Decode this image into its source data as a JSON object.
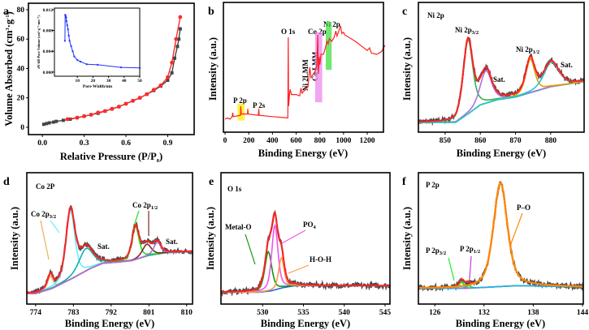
{
  "panels": {
    "a": {
      "label": "a",
      "xlabel": {
        "main": "Relative Pressure (P/P",
        "sub": "0",
        "end": ")"
      },
      "ylabel": {
        "p1": "Volume Absorbed (cm",
        "s1": "3",
        "p2": "·g",
        "s2": "-1",
        "p3": ")"
      },
      "inset": {
        "xlabel": "Pore Width/nm",
        "ylabel": "dV/dD Pore Volume (cm³·g⁻¹·nm⁻¹)",
        "xticks": [
          "10",
          "20",
          "30",
          "40",
          "50"
        ],
        "yticks": [
          "0.000",
          "0.004",
          "0.008",
          "0.012"
        ]
      },
      "xticks": [
        "0.0",
        "0.3",
        "0.6",
        "0.9"
      ],
      "yticks": [
        "0",
        "20",
        "40",
        "60",
        "80"
      ]
    },
    "b": {
      "label": "b",
      "xlabel": "Binding Energy (eV)",
      "ylabel": "Intensity (a.u.)",
      "xticks": [
        "0",
        "200",
        "400",
        "600",
        "800",
        "1000",
        "1200"
      ],
      "annotations": {
        "p2p": "P 2p",
        "p2s": "P 2s",
        "o1s": "O 1s",
        "ni_lmm": "Ni 2LMM",
        "co_lmm": "Co LMM",
        "co2p": "Co 2p",
        "ni2p": "Ni 2p"
      }
    },
    "c": {
      "label": "c",
      "title": "Ni 2p",
      "xlabel": "Binding Energy (eV)",
      "ylabel": "Intensity (a.u.)",
      "xticks": [
        "850",
        "860",
        "870",
        "880"
      ],
      "annotations": {
        "p32": {
          "main": "Ni 2p",
          "sub": "3/2"
        },
        "sat1": "Sat.",
        "p12": {
          "main": "Ni 2p",
          "sub": "1/2"
        },
        "sat2": "Sat."
      }
    },
    "d": {
      "label": "d",
      "title": "Co 2P",
      "xlabel": "Binding Energy (eV)",
      "ylabel": "Intensity (a.u.)",
      "xticks": [
        "774",
        "783",
        "792",
        "801",
        "810"
      ],
      "annotations": {
        "p32": {
          "main": "Co 2p",
          "sub": "3/2"
        },
        "sat1": "Sat.",
        "p12": {
          "main": "Co 2p",
          "sub": "1/2"
        },
        "sat2": "Sat."
      }
    },
    "e": {
      "label": "e",
      "title": "O 1s",
      "xlabel": "Binding Energy (eV)",
      "ylabel": "Intensity (a.u.)",
      "xticks": [
        "530",
        "535",
        "540",
        "545"
      ],
      "annotations": {
        "metal_o": "Metal-O",
        "po4": {
          "main": "PO",
          "sub": "4"
        },
        "hoh": "H-O-H"
      }
    },
    "f": {
      "label": "f",
      "title": "P 2p",
      "xlabel": "Binding Energy (eV)",
      "ylabel": "Intensity (a.u.)",
      "xticks": [
        "126",
        "132",
        "138",
        "144"
      ],
      "annotations": {
        "p32": {
          "main": "P 2p",
          "sub": "3/2"
        },
        "p12": {
          "main": "P 2p",
          "sub": "1/2"
        },
        "po": "P–O"
      }
    }
  },
  "chart_data": [
    {
      "panel": "a",
      "type": "scatter",
      "xlabel": "Relative Pressure (P/P0)",
      "ylabel": "Volume Absorbed (cm3·g-1)",
      "xlim": [
        -0.1,
        1.09
      ],
      "ylim": [
        -5,
        84.4
      ],
      "grid": false,
      "series": [
        {
          "color": "#444444",
          "marker": "square",
          "points": [
            [
              0.01,
              2
            ],
            [
              0.03,
              2.5
            ],
            [
              0.05,
              3
            ],
            [
              0.08,
              3.5
            ],
            [
              0.1,
              4
            ],
            [
              0.15,
              4.7
            ],
            [
              0.2,
              5.5
            ],
            [
              0.25,
              6.5
            ],
            [
              0.3,
              7.5
            ],
            [
              0.35,
              8.5
            ],
            [
              0.4,
              9.5
            ],
            [
              0.45,
              11
            ],
            [
              0.5,
              12.5
            ],
            [
              0.55,
              14
            ],
            [
              0.6,
              16
            ],
            [
              0.65,
              18
            ],
            [
              0.7,
              20
            ],
            [
              0.75,
              22.5
            ],
            [
              0.8,
              25
            ],
            [
              0.85,
              28
            ],
            [
              0.9,
              32
            ],
            [
              0.93,
              37
            ],
            [
              0.95,
              47
            ],
            [
              0.97,
              55
            ],
            [
              0.98,
              60
            ],
            [
              0.99,
              67
            ]
          ]
        },
        {
          "color": "#ff2a2a",
          "marker": "circle",
          "points": [
            [
              0.18,
              5.5
            ],
            [
              0.25,
              6.5
            ],
            [
              0.3,
              7.5
            ],
            [
              0.35,
              8.5
            ],
            [
              0.4,
              10
            ],
            [
              0.45,
              11
            ],
            [
              0.5,
              12.5
            ],
            [
              0.55,
              14
            ],
            [
              0.6,
              16
            ],
            [
              0.65,
              18
            ],
            [
              0.7,
              20
            ],
            [
              0.75,
              22.5
            ],
            [
              0.8,
              25.5
            ],
            [
              0.85,
              28.5
            ],
            [
              0.9,
              34
            ],
            [
              0.93,
              44
            ],
            [
              0.96,
              60
            ],
            [
              0.99,
              75
            ]
          ]
        }
      ],
      "inset": {
        "type": "line",
        "color": "#2233ff",
        "xlim": [
          -4.7,
          50
        ],
        "ylim": [
          -0.0008,
          0.0123
        ],
        "points": [
          [
            2,
            0.006
          ],
          [
            2.2,
            0.011
          ],
          [
            2.5,
            0.0108
          ],
          [
            2.8,
            0.0105
          ],
          [
            3,
            0.0098
          ],
          [
            3.5,
            0.009
          ],
          [
            4,
            0.0082
          ],
          [
            4.5,
            0.007
          ],
          [
            5,
            0.006
          ],
          [
            6,
            0.005
          ],
          [
            7,
            0.004
          ],
          [
            8,
            0.003
          ],
          [
            10,
            0.0023
          ],
          [
            12,
            0.002
          ],
          [
            16,
            0.0015
          ],
          [
            23,
            0.0014
          ],
          [
            38,
            0.0009
          ],
          [
            50,
            0.0008
          ]
        ]
      }
    },
    {
      "panel": "b",
      "type": "line",
      "xlim": [
        -14,
        1337
      ],
      "ylim": [
        0,
        100
      ],
      "color": "#ff2020",
      "points": [
        [
          0,
          10
        ],
        [
          20,
          11
        ],
        [
          40,
          10
        ],
        [
          60,
          12
        ],
        [
          65,
          15
        ],
        [
          70,
          12
        ],
        [
          130,
          13
        ],
        [
          133,
          20
        ],
        [
          136,
          14
        ],
        [
          190,
          14
        ],
        [
          192,
          18
        ],
        [
          195,
          14
        ],
        [
          280,
          13
        ],
        [
          285,
          18
        ],
        [
          288,
          13
        ],
        [
          400,
          12
        ],
        [
          520,
          11
        ],
        [
          530,
          11
        ],
        [
          533,
          73
        ],
        [
          536,
          20
        ],
        [
          545,
          30
        ],
        [
          550,
          33
        ],
        [
          560,
          29
        ],
        [
          600,
          29
        ],
        [
          630,
          28
        ],
        [
          640,
          34
        ],
        [
          650,
          30
        ],
        [
          700,
          35
        ],
        [
          715,
          50
        ],
        [
          725,
          42
        ],
        [
          760,
          47
        ],
        [
          775,
          52
        ],
        [
          782,
          75
        ],
        [
          788,
          45
        ],
        [
          795,
          58
        ],
        [
          800,
          52
        ],
        [
          810,
          60
        ],
        [
          830,
          60
        ],
        [
          850,
          66
        ],
        [
          860,
          70
        ],
        [
          870,
          68
        ],
        [
          880,
          72
        ],
        [
          900,
          70
        ],
        [
          920,
          73
        ],
        [
          935,
          78
        ],
        [
          945,
          74
        ],
        [
          975,
          82
        ],
        [
          985,
          76
        ],
        [
          1000,
          77
        ],
        [
          1010,
          75
        ],
        [
          1100,
          70
        ],
        [
          1200,
          63
        ],
        [
          1220,
          65
        ],
        [
          1235,
          61
        ],
        [
          1280,
          60
        ],
        [
          1320,
          62
        ],
        [
          1350,
          67
        ]
      ],
      "highlights": [
        {
          "name": "P 2p",
          "x": [
            105,
            165
          ],
          "y": [
            9,
            22
          ],
          "color": "#ffee00"
        },
        {
          "name": "Co 2p",
          "x": [
            760,
            820
          ],
          "y": [
            23,
            77
          ],
          "color": "#ee88ee"
        },
        {
          "name": "Ni 2p",
          "x": [
            850,
            900
          ],
          "y": [
            48,
            85
          ],
          "color": "#44dd44"
        }
      ]
    },
    {
      "panel": "c",
      "type": "line",
      "xlim": [
        842.4,
        889.5
      ],
      "ylim": [
        0,
        100
      ],
      "envelope_color": "#ff2222",
      "data_color": "#4a4a4a",
      "background_color": "#22c0c8",
      "background": [
        [
          842.4,
          7.5
        ],
        [
          853,
          7.5
        ],
        [
          857,
          15
        ],
        [
          860,
          21
        ],
        [
          865,
          25
        ],
        [
          870,
          27
        ],
        [
          875,
          31
        ],
        [
          880,
          35
        ],
        [
          889.5,
          39
        ]
      ],
      "components": [
        {
          "center": 856.5,
          "height": 57,
          "fwhm": 3.2,
          "color": "#33b34a"
        },
        {
          "center": 861.6,
          "height": 25,
          "fwhm": 3.8,
          "color": "#b070e0"
        },
        {
          "center": 874.2,
          "height": 26,
          "fwhm": 3.0,
          "color": "#e0a000"
        },
        {
          "center": 880.2,
          "height": 19,
          "fwhm": 5.0,
          "color": "#20c8d0"
        }
      ]
    },
    {
      "panel": "d",
      "type": "line",
      "xlim": [
        771.9,
        811.4
      ],
      "ylim": [
        0,
        100
      ],
      "envelope_color": "#ff2222",
      "data_color": "#4a4a4a",
      "background_color": "#e8b060",
      "background": [
        [
          771.9,
          8
        ],
        [
          774,
          8
        ],
        [
          778,
          12
        ],
        [
          783,
          20
        ],
        [
          787,
          27
        ],
        [
          790,
          31
        ],
        [
          794,
          32
        ],
        [
          797,
          33
        ],
        [
          801,
          37
        ],
        [
          805,
          39
        ],
        [
          811.4,
          40
        ]
      ],
      "components": [
        {
          "center": 777.5,
          "height": 10,
          "fwhm": 1.5,
          "color": "#e8b060"
        },
        {
          "center": 782.3,
          "height": 52,
          "fwhm": 2.5,
          "color": "#66eeff"
        },
        {
          "center": 786.0,
          "height": 17,
          "fwhm": 4.0,
          "color": "#10b0b0"
        },
        {
          "center": 797.8,
          "height": 25,
          "fwhm": 2.0,
          "color": "#22dd22"
        },
        {
          "center": 800.5,
          "height": 9,
          "fwhm": 2.5,
          "color": "#7a2a2a"
        },
        {
          "center": 803.0,
          "height": 9,
          "fwhm": 2.0,
          "color": "#b070e0"
        }
      ]
    },
    {
      "panel": "e",
      "type": "line",
      "xlim": [
        524.9,
        545.6
      ],
      "ylim": [
        0,
        100
      ],
      "envelope_color": "#ff2222",
      "data_color": "#4a4a4a",
      "background_color": "#2266ee",
      "background": [
        [
          524.9,
          9
        ],
        [
          529.5,
          9
        ],
        [
          531,
          10
        ],
        [
          532.5,
          12.5
        ],
        [
          534,
          14
        ],
        [
          545.6,
          14
        ]
      ],
      "components": [
        {
          "center": 530.7,
          "height": 30,
          "fwhm": 1.0,
          "color": "#119911"
        },
        {
          "center": 531.5,
          "height": 49,
          "fwhm": 0.9,
          "color": "#ee55ee"
        },
        {
          "center": 532.3,
          "height": 23,
          "fwhm": 0.8,
          "color": "#ff9944"
        }
      ]
    },
    {
      "panel": "f",
      "type": "line",
      "xlim": [
        124,
        144.1
      ],
      "ylim": [
        0,
        100
      ],
      "envelope_color": "#ff2222",
      "data_color": "#4a4a4a",
      "background_color": "#cc33ee",
      "background": [
        [
          124,
          12
        ],
        [
          130,
          12
        ],
        [
          133,
          13
        ],
        [
          136,
          14
        ],
        [
          144.1,
          13
        ]
      ],
      "components": [
        {
          "center": 129.3,
          "height": 5,
          "fwhm": 0.7,
          "color": "#22ee22"
        },
        {
          "center": 130.1,
          "height": 2,
          "fwhm": 0.7,
          "color": "#22aaee"
        },
        {
          "center": 134.0,
          "height": 79,
          "fwhm": 2.0,
          "color": "#ff8800"
        }
      ]
    }
  ]
}
